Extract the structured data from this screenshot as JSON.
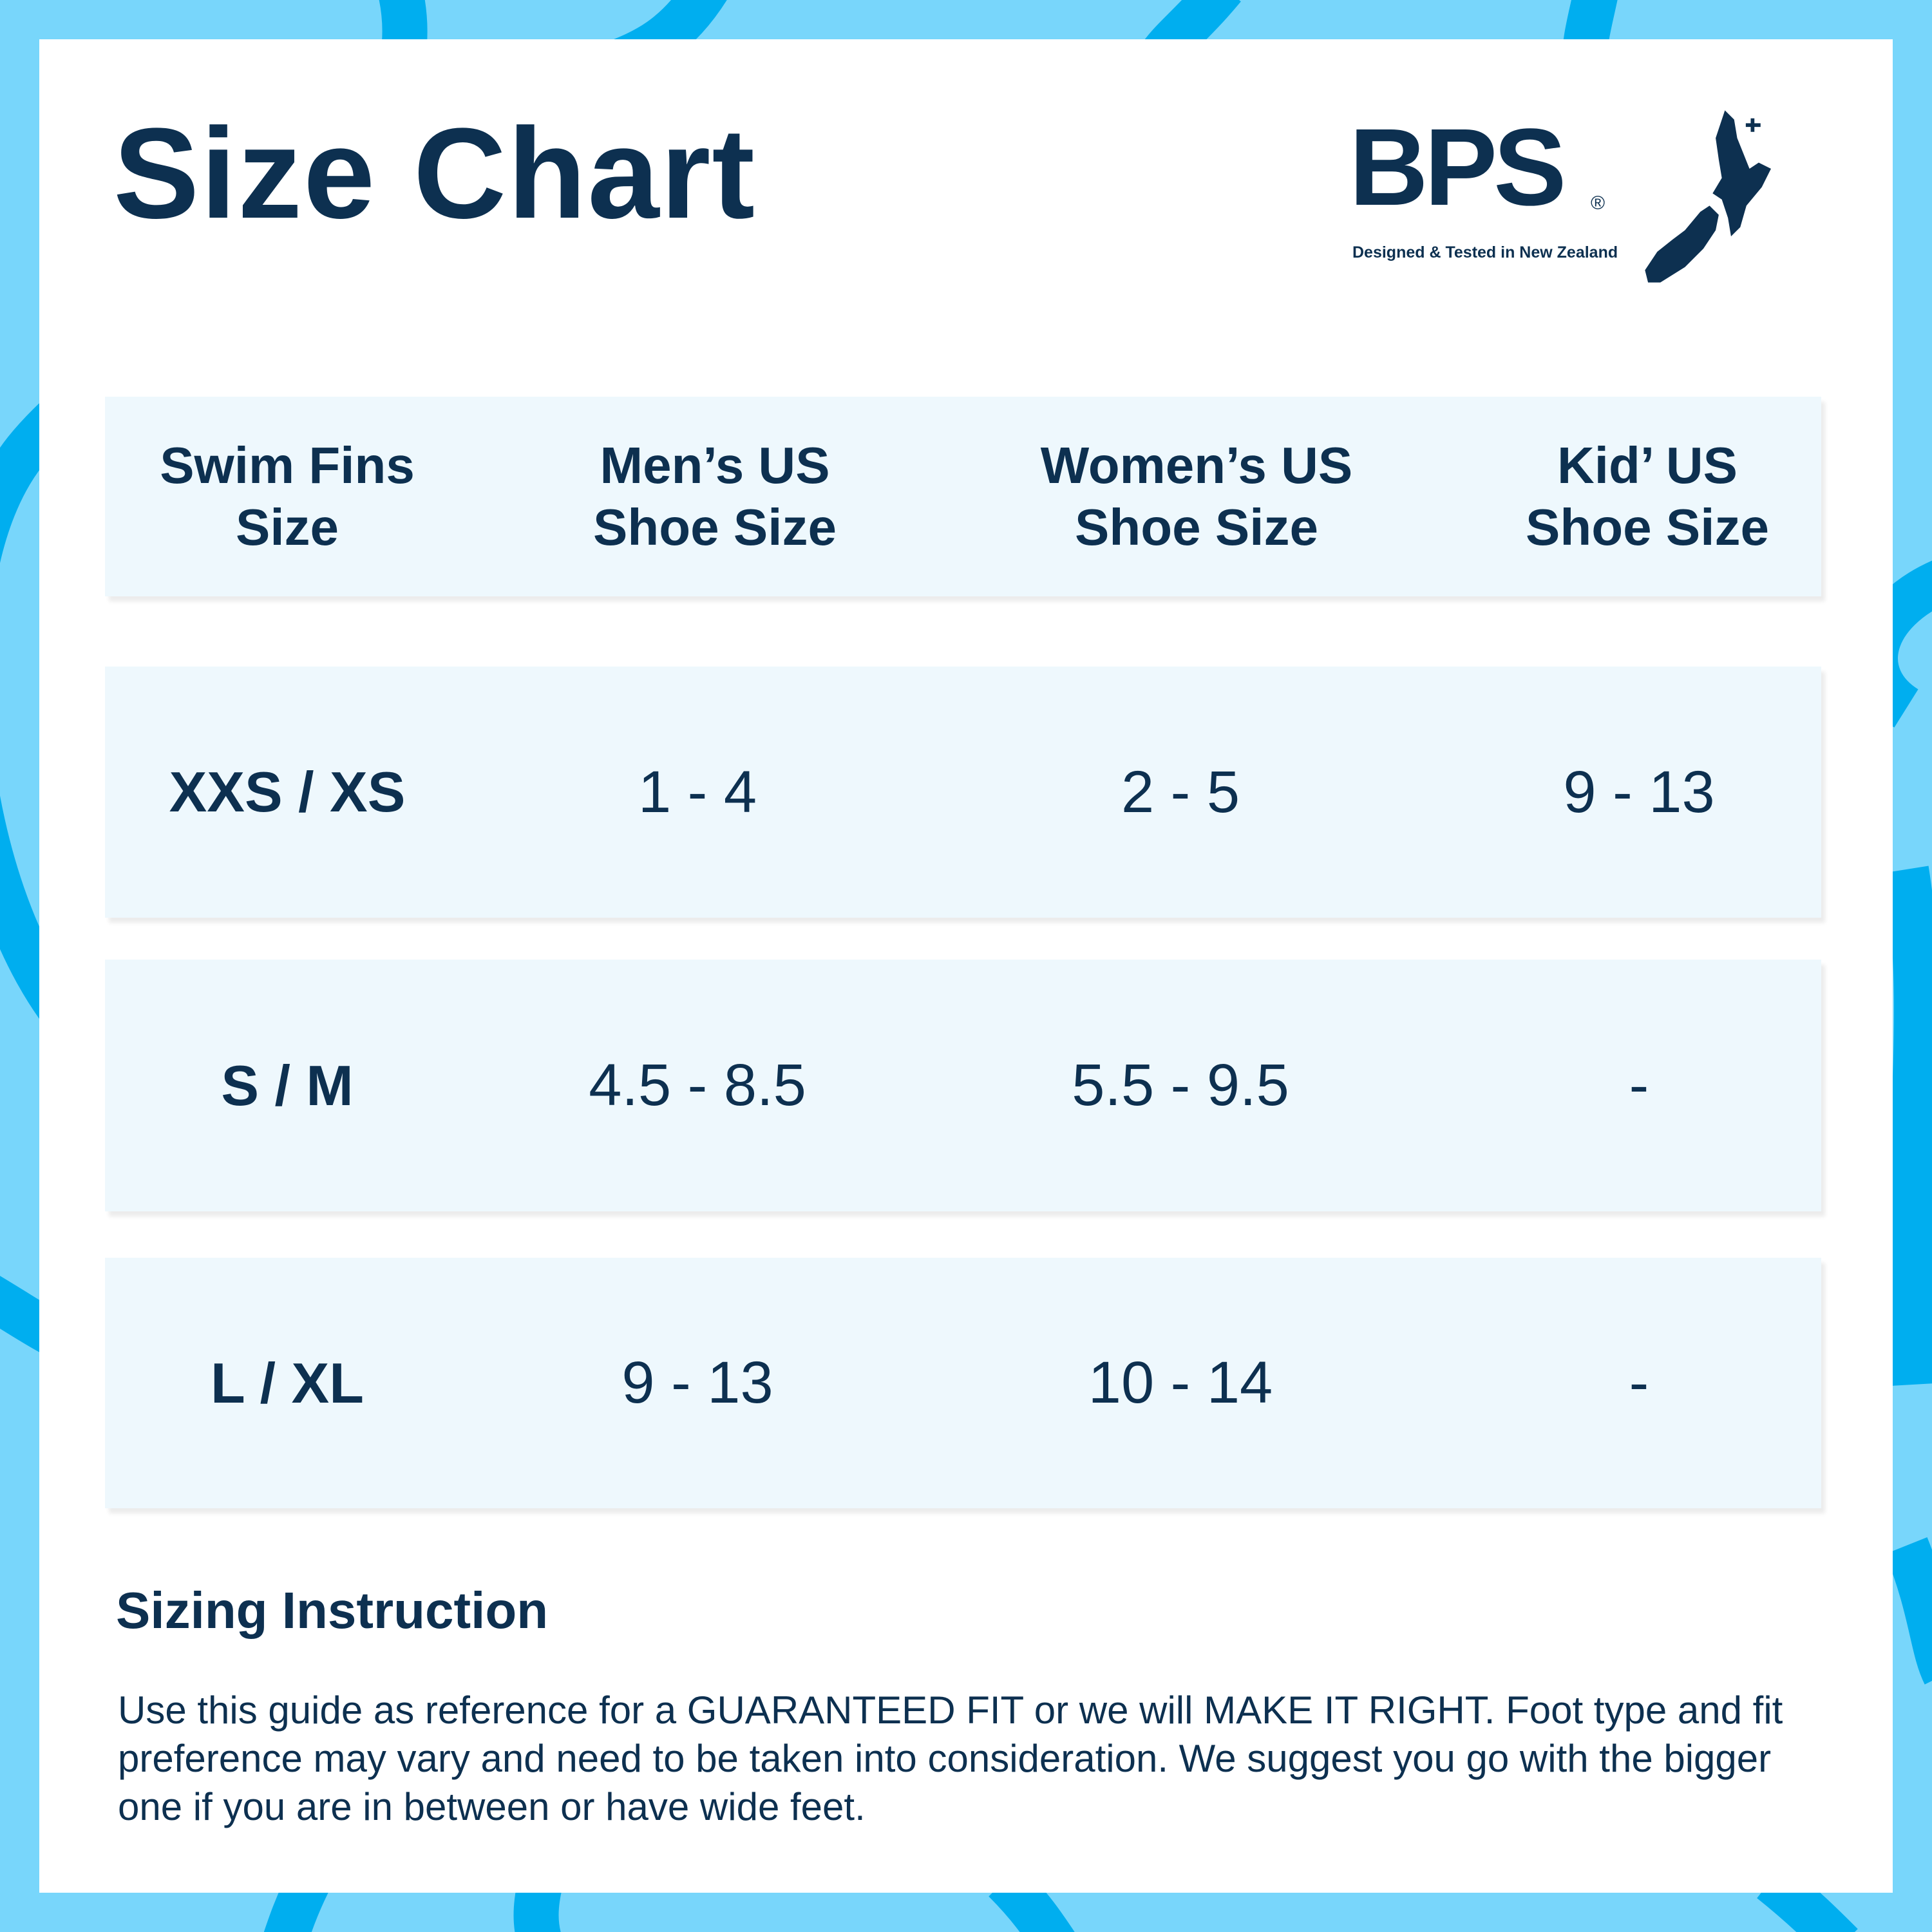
{
  "title": "Size Chart",
  "logo": {
    "brand": "BPS",
    "registered": "®",
    "tagline": "Designed & Tested in New Zealand"
  },
  "colors": {
    "background": "#78d6fb",
    "swirl": "#00aeef",
    "text": "#0d3050",
    "row_fill": "#eef8fd"
  },
  "table": {
    "headers": [
      [
        "Swim Fins",
        "Size"
      ],
      [
        "Men’s US",
        "Shoe Size"
      ],
      [
        "Women’s US",
        "Shoe Size"
      ],
      [
        "Kid’ US",
        "Shoe Size"
      ]
    ],
    "rows": [
      [
        "XXS / XS",
        "1 - 4",
        "2 - 5",
        "9 - 13"
      ],
      [
        "S / M",
        "4.5 - 8.5",
        "5.5 - 9.5",
        "-"
      ],
      [
        "L / XL",
        "9 - 13",
        "10 - 14",
        "-"
      ]
    ]
  },
  "instruction": {
    "heading": "Sizing Instruction",
    "text": "Use this guide as reference for a GUARANTEED FIT or we will MAKE IT RIGHT. Foot type and fit preference may vary and need to be taken into consideration. We suggest you go with the bigger one if you are in between or have wide feet."
  }
}
